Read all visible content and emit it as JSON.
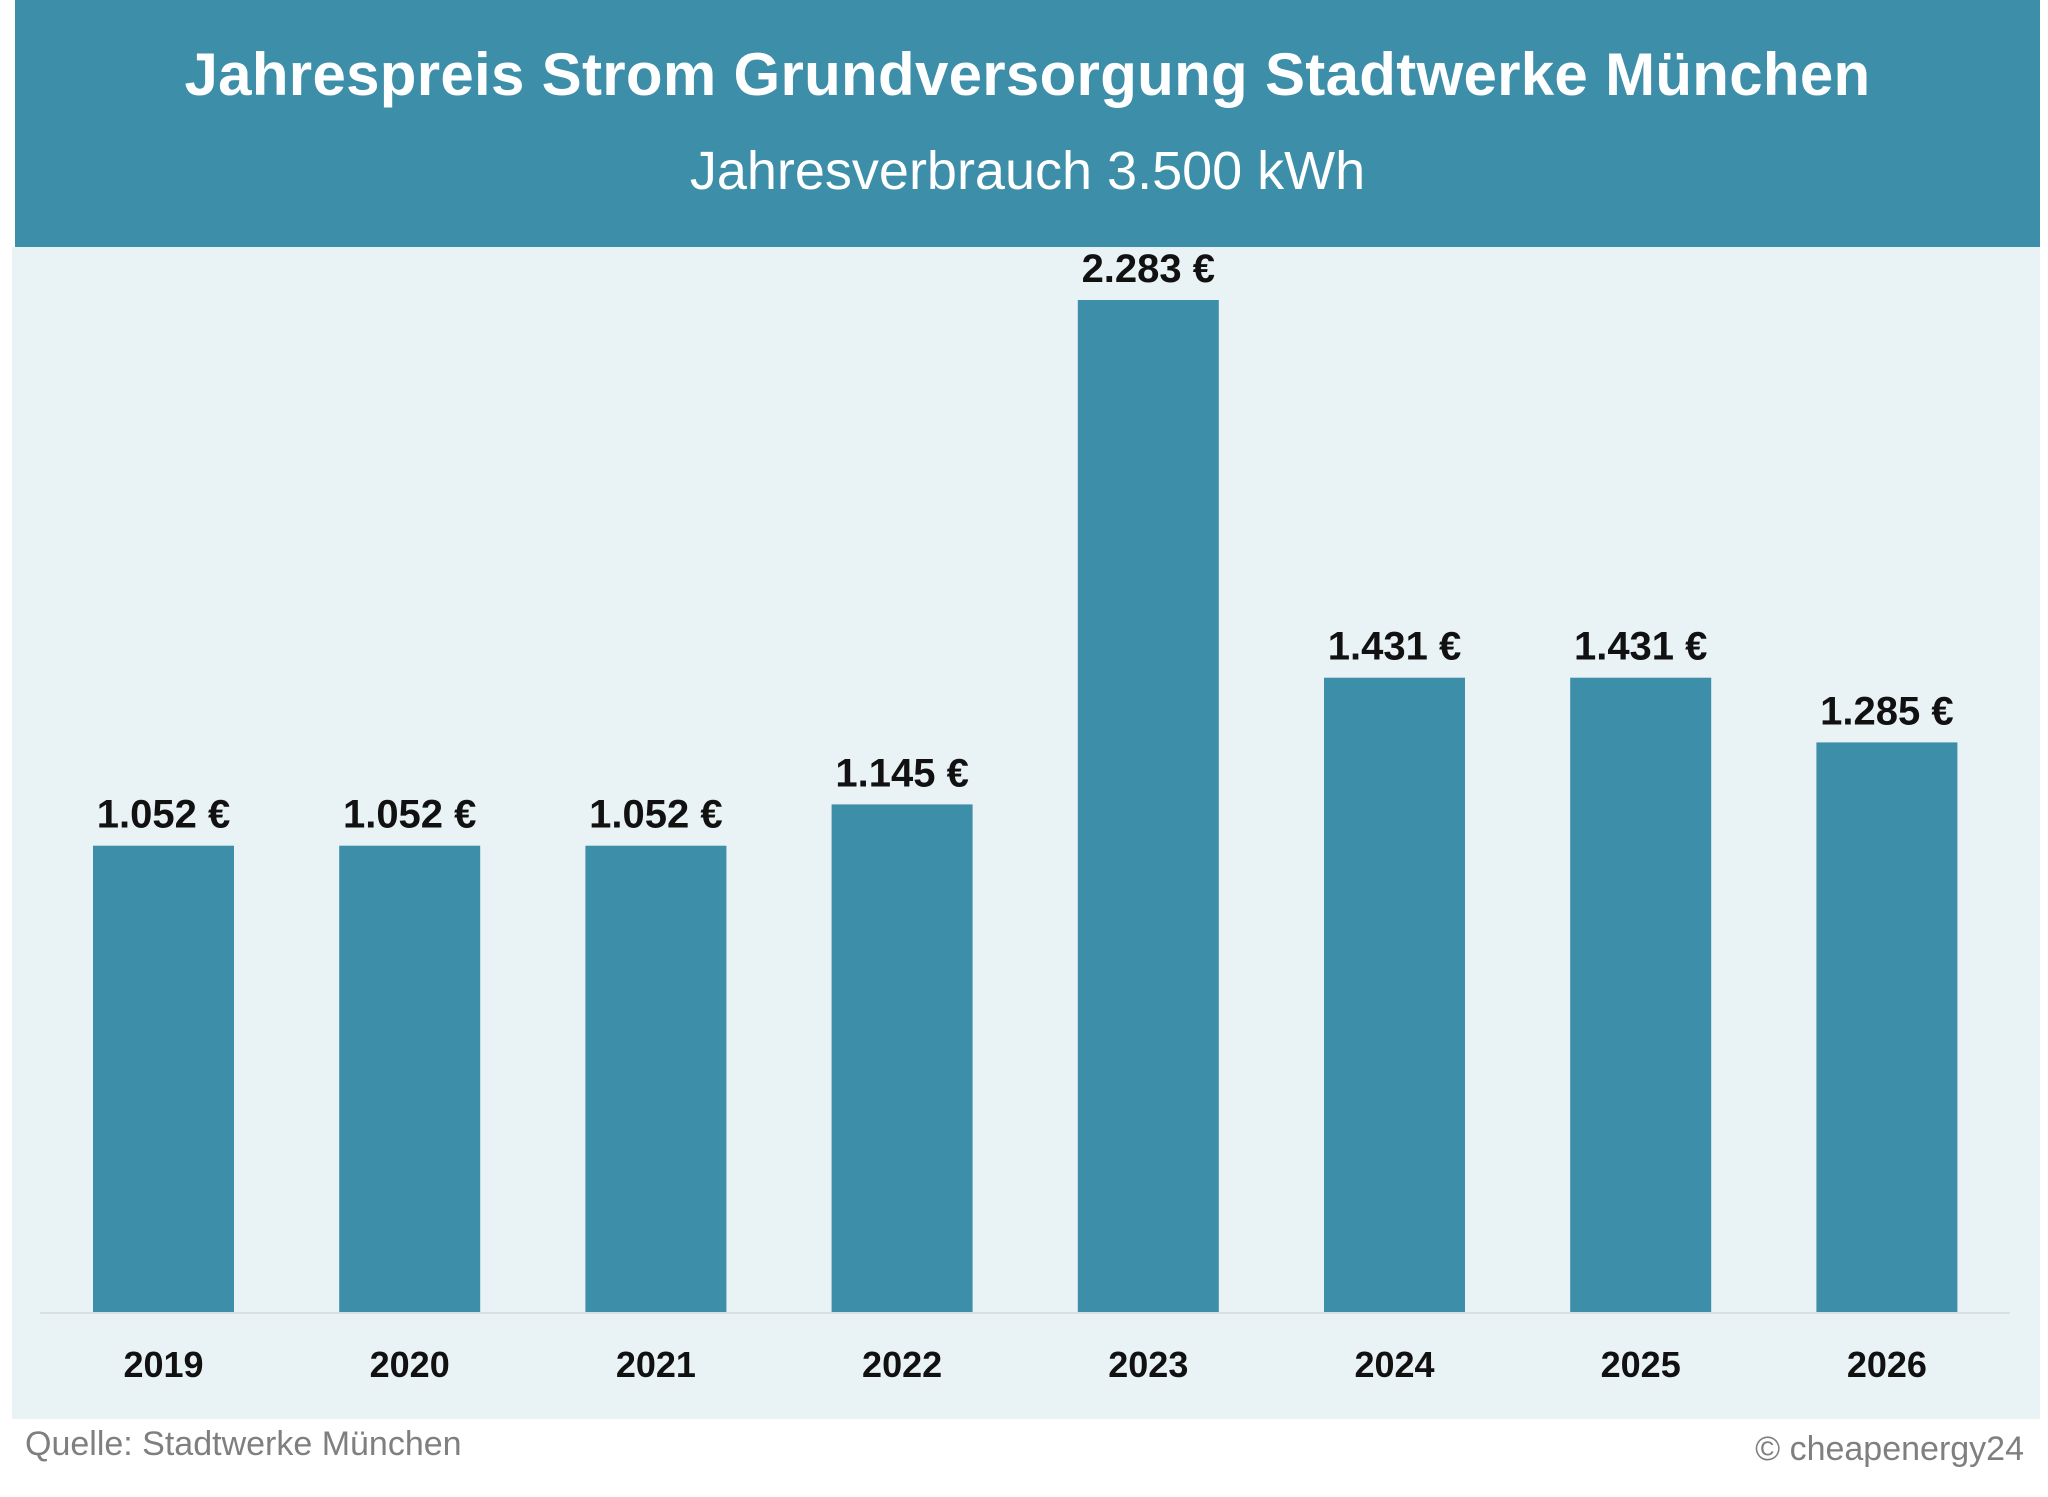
{
  "header": {
    "title": "Jahrespreis Strom Grundversorgung Stadtwerke München",
    "subtitle": "Jahresverbrauch 3.500 kWh"
  },
  "footer": {
    "source": "Quelle: Stadtwerke München",
    "copyright": "© cheapenergy24"
  },
  "colors": {
    "bar": "#3d8ea9",
    "header_bg": "#3d8ea9",
    "plot_bg": "#e9f2f5",
    "label_text": "#111111"
  },
  "chart_data": {
    "type": "bar",
    "title": "Jahrespreis Strom Grundversorgung Stadtwerke München",
    "subtitle": "Jahresverbrauch 3.500 kWh",
    "xlabel": "",
    "ylabel": "",
    "categories": [
      "2019",
      "2020",
      "2021",
      "2022",
      "2023",
      "2024",
      "2025",
      "2026"
    ],
    "values": [
      1052,
      1052,
      1052,
      1145,
      2283,
      1431,
      1431,
      1285
    ],
    "data_labels": [
      "1.052 €",
      "1.052 €",
      "1.052 €",
      "1.145 €",
      "2.283 €",
      "1.431 €",
      "1.431 €",
      "1.285 €"
    ],
    "ylim": [
      0,
      2283
    ],
    "grid": false,
    "legend": "none"
  }
}
